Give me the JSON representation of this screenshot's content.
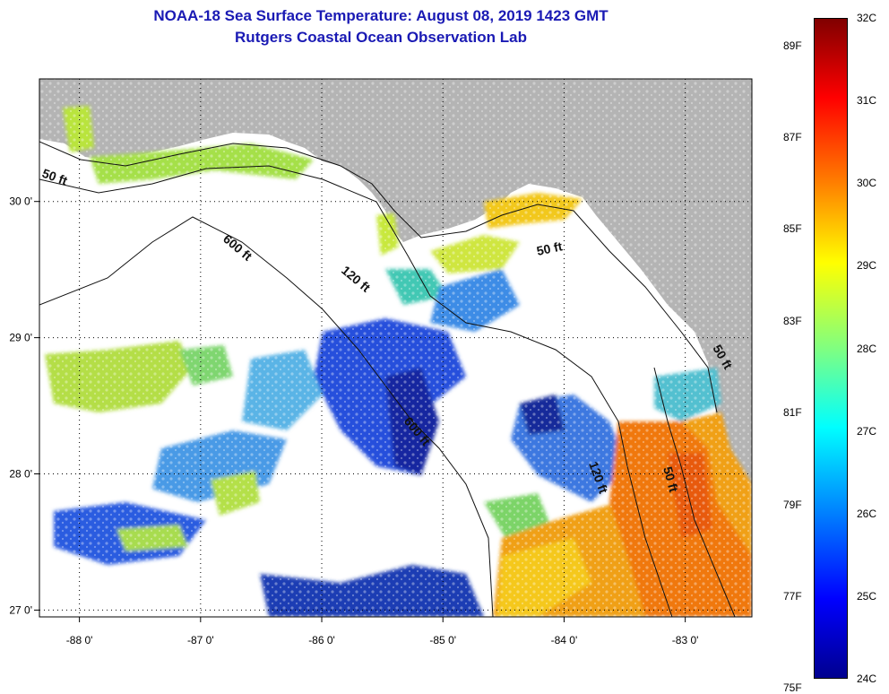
{
  "title": {
    "line1": "NOAA-18 Sea Surface Temperature:  August 08, 2019 1423 GMT",
    "line2": "Rutgers Coastal Ocean Observation Lab"
  },
  "colors": {
    "title": "#1a1ab4",
    "land": "#b4b4b4",
    "ocean_nodata": "#ffffff"
  },
  "map": {
    "lon_range": [
      -88.33,
      -82.45
    ],
    "lat_range": [
      26.95,
      30.9
    ],
    "lon_ticks": [
      "-88 0'",
      "-87 0'",
      "-86 0'",
      "-85 0'",
      "-84 0'",
      "-83 0'"
    ],
    "lon_tick_values": [
      -88,
      -87,
      -86,
      -85,
      -84,
      -83
    ],
    "lat_ticks": [
      "30 0'",
      "29 0'",
      "28 0'",
      "27 0'"
    ],
    "lat_tick_values": [
      30,
      29,
      28,
      27
    ],
    "grid": "dotted",
    "contour_labels": [
      "50 ft",
      "600 ft",
      "120 ft",
      "50 ft",
      "600 ft",
      "120 ft",
      "50 ft",
      "50 ft"
    ]
  },
  "colorbar": {
    "f_labels": [
      "89F",
      "87F",
      "85F",
      "83F",
      "81F",
      "79F",
      "77F",
      "75F"
    ],
    "c_labels": [
      "32C",
      "31C",
      "30C",
      "29C",
      "28C",
      "27C",
      "26C",
      "25C",
      "24C"
    ],
    "range_c": [
      24,
      32
    ]
  }
}
